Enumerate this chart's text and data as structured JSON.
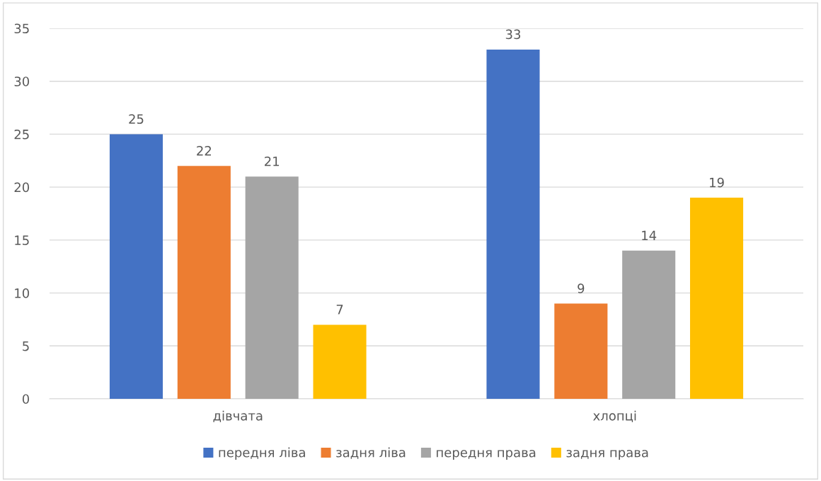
{
  "chart_data": {
    "type": "bar",
    "categories": [
      "дівчата",
      "хлопці"
    ],
    "series": [
      {
        "name": "передня ліва",
        "color": "#4472c4",
        "values": [
          25,
          33
        ]
      },
      {
        "name": "задня ліва",
        "color": "#ed7d31",
        "values": [
          22,
          9
        ]
      },
      {
        "name": "передня права",
        "color": "#a5a5a5",
        "values": [
          21,
          14
        ]
      },
      {
        "name": "задня права",
        "color": "#ffc000",
        "values": [
          7,
          19
        ]
      }
    ],
    "ylim": [
      0,
      35
    ],
    "yticks": [
      0,
      5,
      10,
      15,
      20,
      25,
      30,
      35
    ],
    "grid": "y",
    "legend": "bottom",
    "data_labels": true
  }
}
